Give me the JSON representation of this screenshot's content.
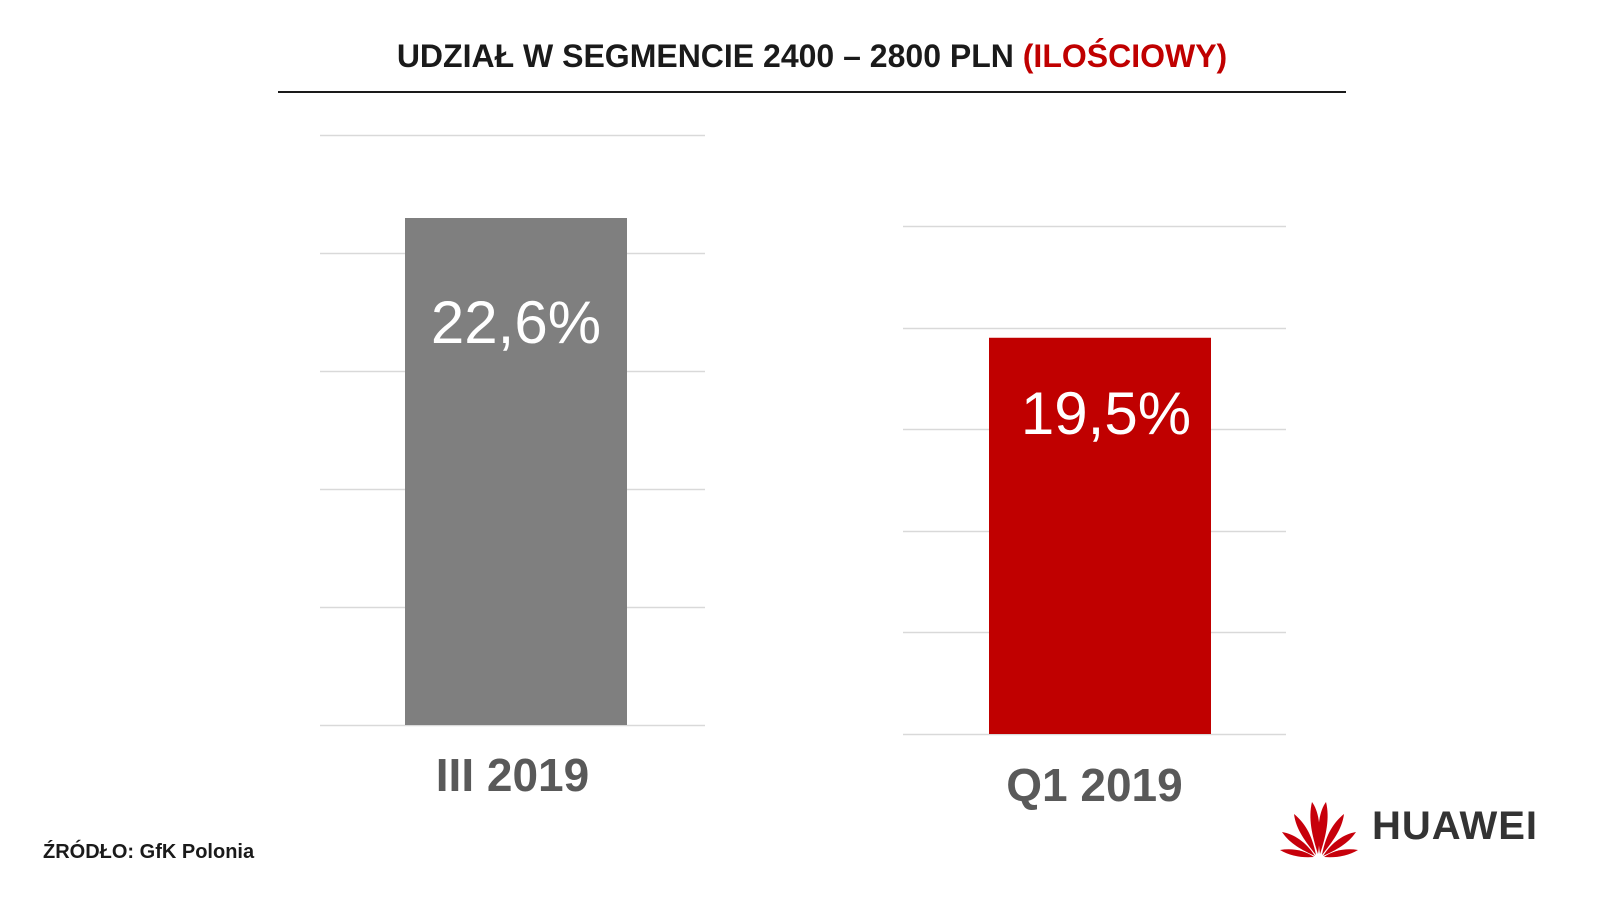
{
  "title": {
    "main": "UDZIAŁ W SEGMENCIE 2400 – 2800 PLN",
    "accent": "(ILOŚCIOWY)"
  },
  "colors": {
    "grey_bar": "#7f7f7f",
    "red_bar": "#c00000",
    "title_accent": "#c00000",
    "gridline": "#d9d9d9"
  },
  "chart_data": [
    {
      "type": "bar",
      "categories": [
        "III 2019"
      ],
      "values": [
        22.6
      ],
      "data_labels": [
        "22,6%"
      ],
      "unit": "%",
      "ylim": [
        0,
        26.3
      ],
      "grid": true,
      "bar_color": "#7f7f7f"
    },
    {
      "type": "bar",
      "categories": [
        "Q1 2019"
      ],
      "values": [
        19.5
      ],
      "data_labels": [
        "19,5%"
      ],
      "unit": "%",
      "ylim": [
        0,
        25.0
      ],
      "grid": true,
      "bar_color": "#c00000"
    }
  ],
  "footer": {
    "source": "ŹRÓDŁO: GfK Polonia",
    "brand": "HUAWEI",
    "brand_icon": "huawei-flower-logo"
  }
}
